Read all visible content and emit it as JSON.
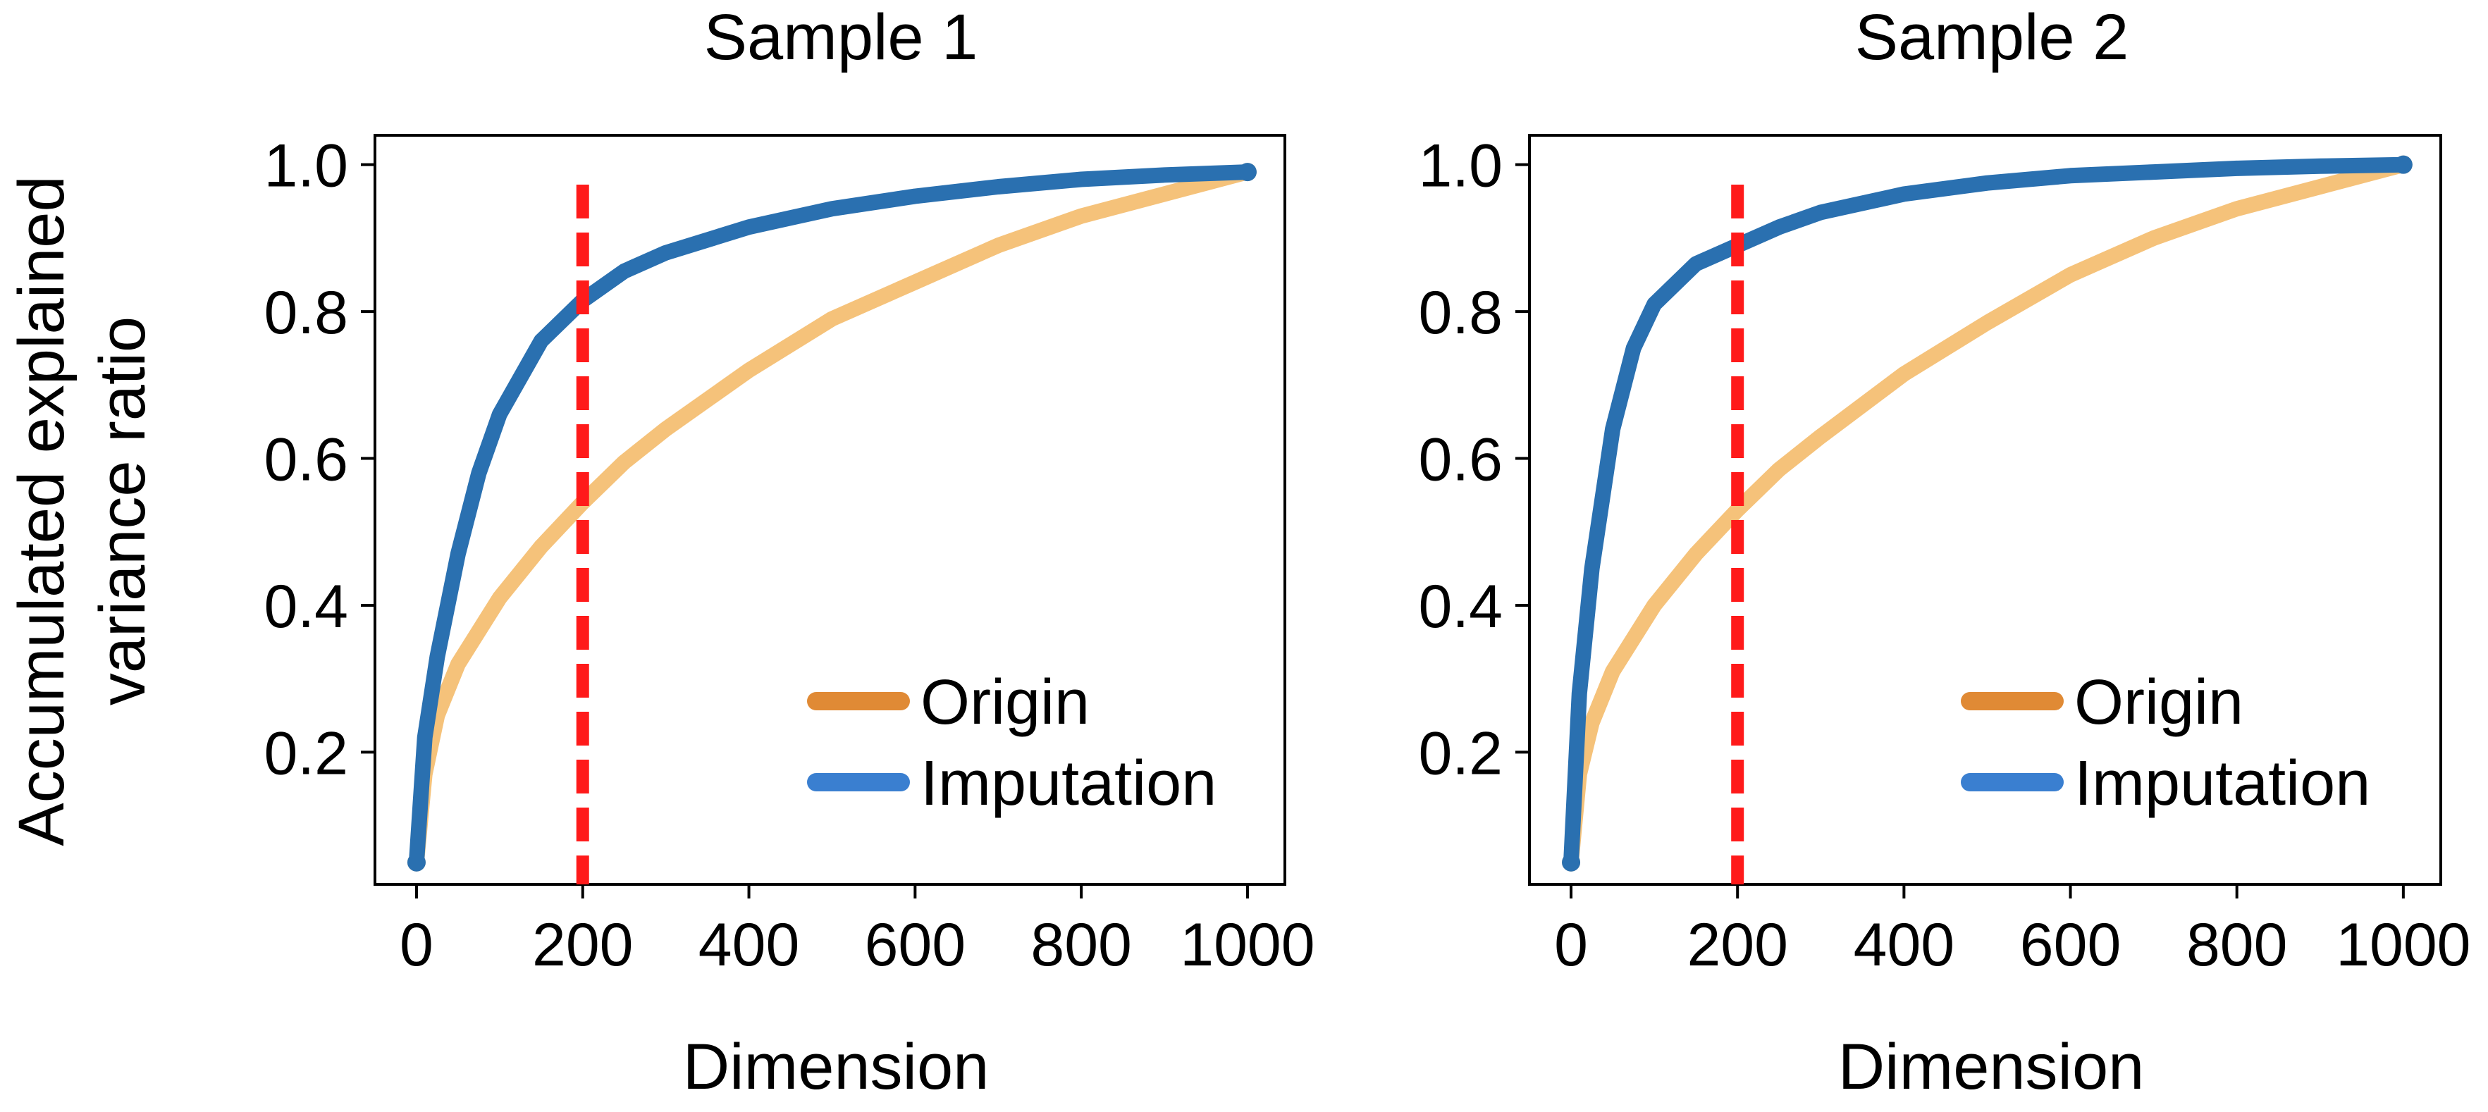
{
  "figure": {
    "ylabel_lines": [
      "Accumulated explained",
      "variance ratio"
    ]
  },
  "chart_data": [
    {
      "type": "line",
      "title": "Sample 1",
      "xlabel": "Dimension",
      "ylabel": "Accumulated explained variance ratio",
      "xlim": [
        -50,
        1045
      ],
      "ylim": [
        0.02,
        1.04
      ],
      "xticks": [
        0,
        200,
        400,
        600,
        800,
        1000
      ],
      "yticks": [
        0.2,
        0.4,
        0.6,
        0.8,
        1.0
      ],
      "grid": false,
      "legend_position": "lower-right",
      "vline": {
        "x": 200,
        "color": "#ff1a1a",
        "style": "dashed"
      },
      "series": [
        {
          "name": "Origin",
          "color": "#f5c27a",
          "legend_color": "#e08a35",
          "x": [
            0,
            10,
            25,
            50,
            100,
            150,
            200,
            250,
            300,
            400,
            500,
            600,
            700,
            800,
            900,
            1000
          ],
          "y": [
            0.05,
            0.17,
            0.25,
            0.32,
            0.41,
            0.48,
            0.54,
            0.595,
            0.64,
            0.72,
            0.79,
            0.84,
            0.89,
            0.93,
            0.96,
            0.99
          ]
        },
        {
          "name": "Imputation",
          "color": "#2a70b0",
          "legend_color": "#3a7fd0",
          "x": [
            0,
            10,
            25,
            50,
            75,
            100,
            150,
            200,
            250,
            300,
            400,
            500,
            600,
            700,
            800,
            900,
            1000
          ],
          "y": [
            0.05,
            0.22,
            0.33,
            0.47,
            0.58,
            0.66,
            0.76,
            0.815,
            0.855,
            0.88,
            0.915,
            0.94,
            0.957,
            0.97,
            0.98,
            0.986,
            0.99
          ]
        }
      ]
    },
    {
      "type": "line",
      "title": "Sample 2",
      "xlabel": "Dimension",
      "ylabel": "",
      "xlim": [
        -50,
        1045
      ],
      "ylim": [
        0.02,
        1.04
      ],
      "xticks": [
        0,
        200,
        400,
        600,
        800,
        1000
      ],
      "yticks": [
        0.2,
        0.4,
        0.6,
        0.8,
        1.0
      ],
      "grid": false,
      "legend_position": "lower-right",
      "vline": {
        "x": 200,
        "color": "#ff1a1a",
        "style": "dashed"
      },
      "series": [
        {
          "name": "Origin",
          "color": "#f5c27a",
          "legend_color": "#e08a35",
          "x": [
            0,
            10,
            25,
            50,
            100,
            150,
            200,
            250,
            300,
            400,
            500,
            600,
            700,
            800,
            900,
            1000
          ],
          "y": [
            0.05,
            0.17,
            0.24,
            0.31,
            0.4,
            0.47,
            0.53,
            0.585,
            0.63,
            0.715,
            0.785,
            0.85,
            0.9,
            0.94,
            0.97,
            1.0
          ]
        },
        {
          "name": "Imputation",
          "color": "#2a70b0",
          "legend_color": "#3a7fd0",
          "x": [
            0,
            10,
            25,
            50,
            75,
            100,
            150,
            200,
            250,
            300,
            400,
            500,
            600,
            700,
            800,
            900,
            1000
          ],
          "y": [
            0.05,
            0.28,
            0.45,
            0.64,
            0.75,
            0.81,
            0.865,
            0.89,
            0.915,
            0.935,
            0.96,
            0.975,
            0.985,
            0.99,
            0.995,
            0.998,
            1.0
          ]
        }
      ]
    }
  ]
}
